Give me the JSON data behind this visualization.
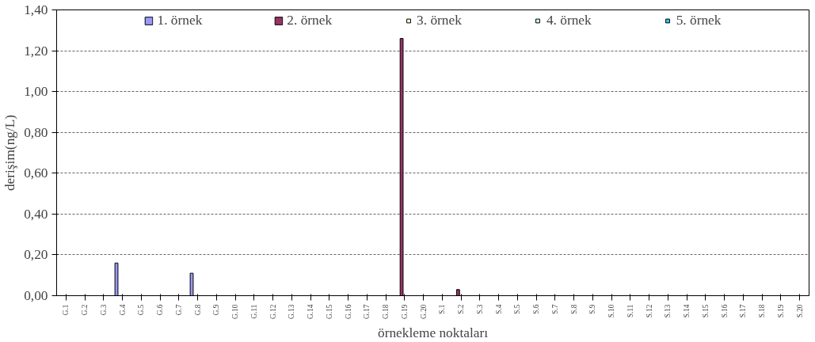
{
  "chart_data": {
    "type": "bar",
    "xlabel": "örnekleme noktaları",
    "ylabel": "derişim(ng/L)",
    "categories": [
      "G.1",
      "G.2",
      "G.3",
      "G.4",
      "G.5",
      "G.6",
      "G.7",
      "G.8",
      "G.9",
      "G.10",
      "G.11",
      "G.12",
      "G.13",
      "G.14",
      "G.15",
      "G.16",
      "G.17",
      "G.18",
      "G.19",
      "G.20",
      "S.1",
      "S.2",
      "S.3",
      "S.4",
      "S.5",
      "S.6",
      "S.7",
      "S.8",
      "S.9",
      "S.10",
      "S.11",
      "S.12",
      "S.13",
      "S.14",
      "S.15",
      "S.16",
      "S.17",
      "S.18",
      "S.19",
      "S.20"
    ],
    "series": [
      {
        "name": "1. örnek",
        "color": "#9999ff",
        "values": [
          null,
          null,
          null,
          0.16,
          null,
          null,
          null,
          0.11,
          null,
          null,
          null,
          null,
          null,
          null,
          null,
          null,
          null,
          null,
          null,
          null,
          null,
          null,
          null,
          null,
          null,
          null,
          null,
          null,
          null,
          null,
          null,
          null,
          null,
          null,
          null,
          null,
          null,
          null,
          null,
          null
        ]
      },
      {
        "name": "2. örnek",
        "color": "#993366",
        "values": [
          null,
          null,
          null,
          null,
          null,
          null,
          null,
          null,
          null,
          null,
          null,
          null,
          null,
          null,
          null,
          null,
          null,
          null,
          1.26,
          null,
          null,
          0.03,
          null,
          null,
          null,
          null,
          null,
          null,
          null,
          null,
          null,
          null,
          null,
          null,
          null,
          null,
          null,
          null,
          null,
          null
        ]
      },
      {
        "name": "3. örnek",
        "color": "#ffffcc",
        "values": [
          null,
          null,
          null,
          null,
          null,
          null,
          null,
          null,
          null,
          null,
          null,
          null,
          null,
          null,
          null,
          null,
          null,
          null,
          null,
          null,
          null,
          null,
          null,
          null,
          null,
          null,
          null,
          null,
          null,
          null,
          null,
          null,
          null,
          null,
          null,
          null,
          null,
          null,
          null,
          null
        ]
      },
      {
        "name": "4. örnek",
        "color": "#ccffff",
        "values": [
          null,
          null,
          null,
          null,
          null,
          null,
          null,
          null,
          null,
          null,
          null,
          null,
          null,
          null,
          null,
          null,
          null,
          null,
          null,
          null,
          null,
          null,
          null,
          null,
          null,
          null,
          null,
          null,
          null,
          null,
          null,
          null,
          null,
          null,
          null,
          null,
          null,
          null,
          null,
          null
        ]
      },
      {
        "name": "5. örnek",
        "color": "#33ccff",
        "values": [
          null,
          null,
          null,
          null,
          null,
          null,
          null,
          null,
          null,
          null,
          null,
          null,
          null,
          null,
          null,
          null,
          null,
          null,
          null,
          null,
          null,
          null,
          null,
          null,
          null,
          null,
          null,
          null,
          null,
          null,
          null,
          null,
          null,
          null,
          null,
          null,
          null,
          null,
          null,
          null
        ]
      }
    ],
    "ylim": [
      0,
      1.4
    ],
    "yticks": [
      {
        "value": 0,
        "label": "0,00"
      },
      {
        "value": 0.2,
        "label": "0,20"
      },
      {
        "value": 0.4,
        "label": "0,40"
      },
      {
        "value": 0.6,
        "label": "0,60"
      },
      {
        "value": 0.8,
        "label": "0,80"
      },
      {
        "value": 1.0,
        "label": "1,00"
      },
      {
        "value": 1.2,
        "label": "1,20"
      },
      {
        "value": 1.4,
        "label": "1,40"
      }
    ],
    "grid": "y",
    "legend": "top"
  }
}
